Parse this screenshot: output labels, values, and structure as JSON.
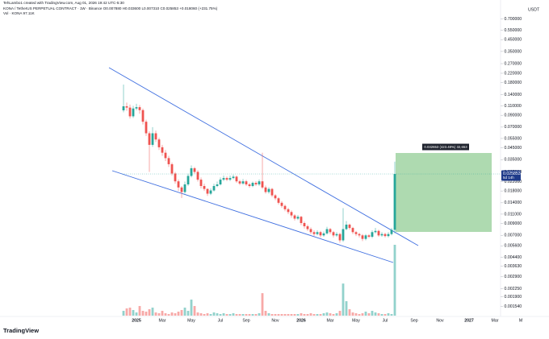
{
  "chart_data": {
    "type": "candlestick",
    "subtitle": "TehLambo1 created with TradingView.com, Aug 01, 2026 19:42 UTC-5:30",
    "title": "KONA / TetherUS PERPETUAL CONTRACT · 1W · Binance  O0.007880 H0.033600 L0.007310 C0.025853 +0.018060 (+231.75%)",
    "volume_label": "Vol · KONA 97.11K",
    "y_unit": "USDT",
    "brand": "TradingView",
    "annotation": "0.032653 (423.48%) 32,653",
    "countdown": "5d 14h",
    "log_scale": true,
    "grid": false,
    "up_color": "#26a69a",
    "down_color": "#ef5350",
    "ylim": [
      0.00127,
      1.045
    ],
    "yticks": [
      {
        "value": 0.7,
        "label": "0.700000"
      },
      {
        "value": 0.55,
        "label": "0.550000"
      },
      {
        "value": 0.45,
        "label": "0.450000"
      },
      {
        "value": 0.35,
        "label": "0.350000"
      },
      {
        "value": 0.27,
        "label": "0.270000"
      },
      {
        "value": 0.22,
        "label": "0.220000"
      },
      {
        "value": 0.18,
        "label": "0.180000"
      },
      {
        "value": 0.14,
        "label": "0.140000"
      },
      {
        "value": 0.11,
        "label": "0.110000"
      },
      {
        "value": 0.09,
        "label": "0.090000"
      },
      {
        "value": 0.07,
        "label": "0.070000"
      },
      {
        "value": 0.055,
        "label": "0.055000"
      },
      {
        "value": 0.045,
        "label": "0.045000"
      },
      {
        "value": 0.035,
        "label": "0.035000"
      },
      {
        "value": 0.027,
        "label": "0.027000"
      },
      {
        "value": 0.022,
        "label": "0.022000"
      },
      {
        "value": 0.018,
        "label": "0.018000"
      },
      {
        "value": 0.014,
        "label": "0.014000"
      },
      {
        "value": 0.011,
        "label": "0.011000"
      },
      {
        "value": 0.009,
        "label": "0.009000"
      },
      {
        "value": 0.007,
        "label": "0.007000"
      },
      {
        "value": 0.0056,
        "label": "0.005600"
      },
      {
        "value": 0.0044,
        "label": "0.004400"
      },
      {
        "value": 0.00363,
        "label": "0.003630"
      },
      {
        "value": 0.0029,
        "label": "0.002900"
      },
      {
        "value": 0.00225,
        "label": "0.002250"
      },
      {
        "value": 0.0019,
        "label": "0.001900"
      },
      {
        "value": 0.00154,
        "label": "0.001540"
      }
    ],
    "categories": [
      null,
      null,
      null,
      null,
      "2025",
      null,
      null,
      null,
      null,
      null,
      null,
      null,
      "Mar",
      null,
      null,
      null,
      null,
      null,
      null,
      null,
      null,
      "May",
      null,
      null,
      null,
      null,
      null,
      null,
      null,
      null,
      "Jul",
      null,
      null,
      null,
      null,
      null,
      null,
      null,
      "Sep",
      null,
      null,
      null,
      null,
      null,
      null,
      null,
      null,
      "Nov",
      null,
      null,
      null,
      null,
      null,
      null,
      null,
      "2026",
      null,
      null,
      null,
      null,
      null,
      null,
      null,
      null,
      "Mar",
      null,
      null,
      null,
      null,
      null,
      null,
      null,
      "May",
      null,
      null,
      null,
      null,
      null,
      null,
      null,
      null,
      "Jul",
      null,
      null,
      null,
      null,
      null,
      null,
      null,
      null,
      "Sep",
      null,
      null,
      null,
      null,
      null,
      null,
      null,
      "Nov",
      null,
      null,
      null,
      null,
      null,
      null,
      null,
      null,
      "2027",
      null,
      null,
      null,
      null,
      null,
      null,
      null,
      "Mar",
      null,
      null,
      null,
      null,
      null,
      null,
      null,
      "M",
      null,
      null
    ],
    "open": [
      0.1,
      0.109,
      0.106,
      0.0881,
      0.104,
      0.107,
      0.1005,
      0.0785,
      0.0614,
      0.048,
      0.0614,
      0.0538,
      0.0456,
      0.0406,
      0.0362,
      0.0318,
      0.0261,
      0.0221,
      0.0194,
      0.0176,
      0.0207,
      0.0248,
      0.0292,
      0.027,
      0.0229,
      0.02,
      0.0188,
      0.017,
      0.0182,
      0.02,
      0.0207,
      0.0229,
      0.0237,
      0.0229,
      0.0237,
      0.0244,
      0.0221,
      0.0211,
      0.0221,
      0.0207,
      0.02,
      0.0214,
      0.0207,
      0.0221,
      0.0194,
      0.0176,
      0.0188,
      0.0164,
      0.0154,
      0.014,
      0.0131,
      0.0122,
      0.0115,
      0.0107,
      0.01,
      0.0104,
      0.0091,
      0.0085,
      0.008,
      0.0075,
      0.0072,
      0.0075,
      0.007,
      0.0073,
      0.008,
      0.0075,
      0.007,
      0.0072,
      0.0063,
      0.008,
      0.0088,
      0.0082,
      0.0075,
      0.0072,
      0.007,
      0.0065,
      0.007,
      0.0068,
      0.0075,
      0.0077,
      0.007,
      0.0072,
      0.0069,
      0.0072,
      0.00788,
      null,
      null,
      null,
      null,
      null,
      null,
      null,
      null,
      null,
      null,
      null,
      null,
      null,
      null,
      null,
      null,
      null,
      null,
      null,
      null,
      null,
      null,
      null,
      null,
      null,
      null,
      null,
      null,
      null,
      null,
      null,
      null,
      null,
      null,
      null,
      null,
      null,
      null,
      null,
      null,
      null
    ],
    "high": [
      0.173,
      0.118,
      0.113,
      0.11,
      0.115,
      0.112,
      0.104,
      0.082,
      0.064,
      0.07,
      0.065,
      0.056,
      0.048,
      0.043,
      0.038,
      0.033,
      0.027,
      0.023,
      0.02,
      0.022,
      0.026,
      0.031,
      0.03,
      0.028,
      0.024,
      0.021,
      0.019,
      0.019,
      0.021,
      0.022,
      0.024,
      0.025,
      0.0245,
      0.025,
      0.0255,
      0.025,
      0.0228,
      0.0232,
      0.0228,
      0.0214,
      0.022,
      0.0222,
      0.023,
      0.0406,
      0.0202,
      0.0195,
      0.0192,
      0.0168,
      0.0158,
      0.0145,
      0.0135,
      0.0126,
      0.0119,
      0.011,
      0.0108,
      0.0106,
      0.0094,
      0.0088,
      0.0083,
      0.0078,
      0.0078,
      0.0077,
      0.0076,
      0.0084,
      0.0082,
      0.0077,
      0.0075,
      0.0074,
      0.0125,
      0.0095,
      0.009,
      0.0084,
      0.0077,
      0.0074,
      0.0072,
      0.0072,
      0.0072,
      0.0078,
      0.0082,
      0.0079,
      0.0075,
      0.0074,
      0.0075,
      0.0082,
      0.0336,
      null,
      null,
      null,
      null,
      null,
      null,
      null,
      null,
      null,
      null,
      null,
      null,
      null,
      null,
      null,
      null,
      null,
      null,
      null,
      null,
      null,
      null,
      null,
      null,
      null,
      null,
      null,
      null,
      null,
      null,
      null,
      null,
      null,
      null,
      null,
      null,
      null,
      null,
      null,
      null,
      null
    ],
    "low": [
      0.096,
      0.099,
      0.084,
      0.085,
      0.1,
      0.093,
      0.074,
      0.058,
      0.027,
      0.046,
      0.051,
      0.043,
      0.038,
      0.034,
      0.03,
      0.025,
      0.021,
      0.018,
      0.0155,
      0.017,
      0.02,
      0.024,
      0.026,
      0.022,
      0.019,
      0.018,
      0.0162,
      0.0165,
      0.0178,
      0.0195,
      0.0202,
      0.0222,
      0.0222,
      0.0222,
      0.0231,
      0.0214,
      0.0204,
      0.0205,
      0.02,
      0.0193,
      0.0195,
      0.02,
      0.02,
      0.0188,
      0.017,
      0.017,
      0.0158,
      0.0148,
      0.0135,
      0.0126,
      0.0117,
      0.011,
      0.0102,
      0.0096,
      0.0097,
      0.0087,
      0.0081,
      0.0077,
      0.0072,
      0.0069,
      0.007,
      0.0067,
      0.0068,
      0.0071,
      0.0072,
      0.0067,
      0.0068,
      0.006,
      0.0061,
      0.0078,
      0.0079,
      0.0072,
      0.0069,
      0.0067,
      0.0062,
      0.0063,
      0.0066,
      0.0066,
      0.0073,
      0.0068,
      0.0068,
      0.0067,
      0.0067,
      0.007,
      0.00731,
      null,
      null,
      null,
      null,
      null,
      null,
      null,
      null,
      null,
      null,
      null,
      null,
      null,
      null,
      null,
      null,
      null,
      null,
      null,
      null,
      null,
      null,
      null,
      null,
      null,
      null,
      null,
      null,
      null,
      null,
      null,
      null,
      null,
      null,
      null,
      null,
      null,
      null,
      null,
      null,
      null
    ],
    "close": [
      0.109,
      0.106,
      0.0881,
      0.104,
      0.107,
      0.1005,
      0.0785,
      0.0614,
      0.048,
      0.0614,
      0.0538,
      0.0456,
      0.0406,
      0.0362,
      0.0318,
      0.0261,
      0.0221,
      0.0194,
      0.0176,
      0.0207,
      0.0248,
      0.0292,
      0.027,
      0.0229,
      0.02,
      0.0188,
      0.017,
      0.0182,
      0.02,
      0.0207,
      0.0229,
      0.0237,
      0.0229,
      0.0237,
      0.0244,
      0.0221,
      0.0211,
      0.0221,
      0.0207,
      0.02,
      0.0214,
      0.0207,
      0.0221,
      0.0194,
      0.0176,
      0.0188,
      0.0164,
      0.0154,
      0.014,
      0.0131,
      0.0122,
      0.0115,
      0.0107,
      0.01,
      0.0104,
      0.0091,
      0.0085,
      0.008,
      0.0075,
      0.0072,
      0.0075,
      0.007,
      0.0073,
      0.008,
      0.0075,
      0.007,
      0.0072,
      0.0063,
      0.008,
      0.0088,
      0.0082,
      0.0075,
      0.0072,
      0.007,
      0.0065,
      0.007,
      0.0068,
      0.0075,
      0.0077,
      0.007,
      0.0072,
      0.0069,
      0.0072,
      0.00788,
      0.025853,
      null,
      null,
      null,
      null,
      null,
      null,
      null,
      null,
      null,
      null,
      null,
      null,
      null,
      null,
      null,
      null,
      null,
      null,
      null,
      null,
      null,
      null,
      null,
      null,
      null,
      null,
      null,
      null,
      null,
      null,
      null,
      null,
      null,
      null,
      null,
      null,
      null,
      null,
      null,
      null,
      null
    ],
    "volume": [
      6600,
      9900,
      11000,
      7700,
      4400,
      13200,
      6600,
      5500,
      8800,
      11000,
      4400,
      3300,
      6600,
      3300,
      2200,
      4400,
      3300,
      5500,
      7700,
      11000,
      6600,
      22000,
      13200,
      4400,
      3300,
      2200,
      3300,
      2200,
      4400,
      3300,
      2200,
      3300,
      2200,
      2200,
      3300,
      2200,
      2200,
      2200,
      2200,
      2200,
      2200,
      2200,
      3300,
      30800,
      6600,
      3300,
      2200,
      2200,
      2200,
      2200,
      2200,
      2200,
      2200,
      2200,
      2200,
      3300,
      2200,
      2200,
      3300,
      2200,
      2200,
      2200,
      3300,
      4400,
      3300,
      2200,
      3300,
      6600,
      44000,
      19800,
      8800,
      4400,
      3300,
      2200,
      3300,
      5500,
      3300,
      6600,
      4400,
      3300,
      2200,
      2200,
      3300,
      2200,
      97110,
      null,
      null,
      null,
      null,
      null,
      null,
      null,
      null,
      null,
      null,
      null,
      null,
      null,
      null,
      null,
      null,
      null,
      null,
      null,
      null,
      null,
      null,
      null,
      null,
      null,
      null,
      null,
      null,
      null,
      null,
      null,
      null,
      null,
      null,
      null,
      null,
      null,
      null,
      null,
      null,
      null
    ]
  }
}
